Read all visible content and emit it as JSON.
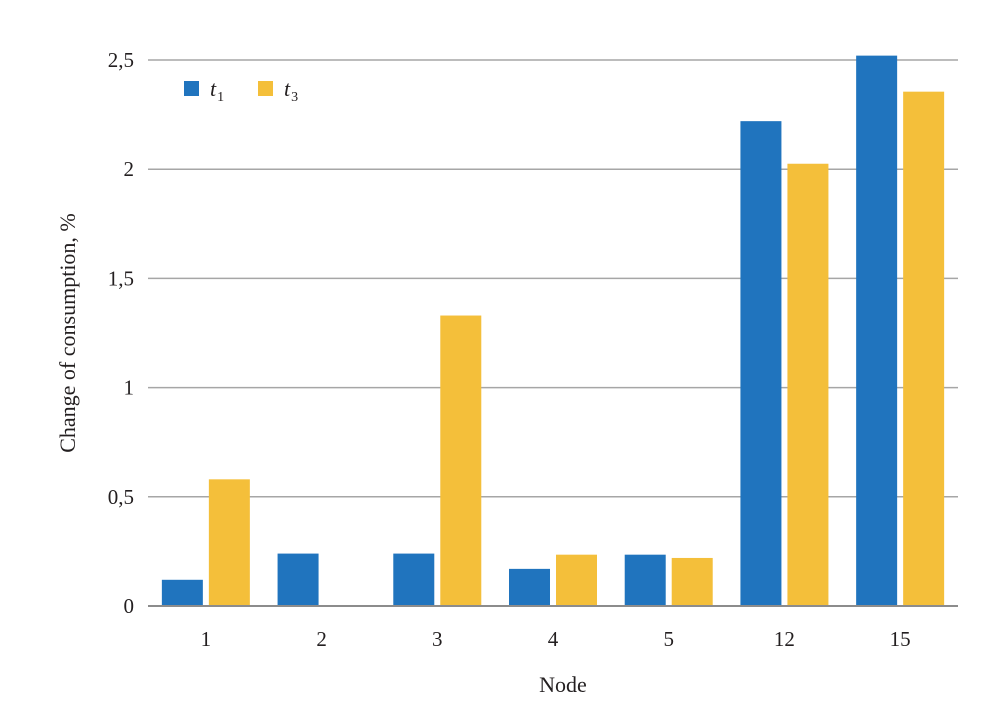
{
  "chart_data": {
    "type": "bar",
    "categories": [
      "1",
      "2",
      "3",
      "4",
      "5",
      "12",
      "15"
    ],
    "series": [
      {
        "name": "t1",
        "name_main": "t",
        "name_sub": "1",
        "color": "#2074be",
        "values": [
          0.12,
          0.24,
          0.24,
          0.17,
          0.235,
          2.22,
          2.52
        ]
      },
      {
        "name": "t3",
        "name_main": "t",
        "name_sub": "3",
        "color": "#f4bf3a",
        "values": [
          0.58,
          0.0,
          1.33,
          0.235,
          0.22,
          2.025,
          2.355
        ]
      }
    ],
    "xlabel": "Node",
    "ylabel": "Change of consumption, %",
    "ylim": [
      0,
      2.5
    ],
    "yticks": [
      0,
      0.5,
      1,
      1.5,
      2,
      2.5
    ],
    "ytick_labels": [
      "0",
      "0,5",
      "1",
      "1,5",
      "2",
      "2,5"
    ],
    "grid": true,
    "legend_position": "top-left"
  }
}
